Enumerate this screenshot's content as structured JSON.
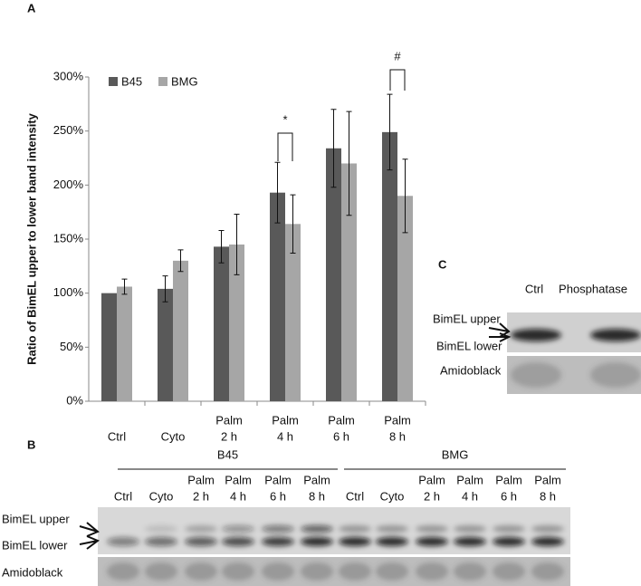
{
  "chart_data": {
    "type": "bar",
    "panel_label": "A",
    "ylabel": "Ratio of BimEL upper to lower band intensity",
    "categories": [
      [
        "Ctrl"
      ],
      [
        "Cyto"
      ],
      [
        "Palm",
        "2 h"
      ],
      [
        "Palm",
        "4 h"
      ],
      [
        "Palm",
        "6 h"
      ],
      [
        "Palm",
        "8 h"
      ]
    ],
    "series": [
      {
        "name": "B45",
        "color": "#595959",
        "values": [
          100,
          104,
          143,
          193,
          234,
          249
        ],
        "errors": [
          0,
          12,
          15,
          28,
          36,
          35
        ]
      },
      {
        "name": "BMG",
        "color": "#a6a6a6",
        "values": [
          106,
          130,
          145,
          164,
          220,
          190
        ],
        "errors": [
          7,
          10,
          28,
          27,
          48,
          34
        ]
      }
    ],
    "ylim": [
      0,
      300
    ],
    "yticks": [
      {
        "value": 0,
        "label": "0%"
      },
      {
        "value": 50,
        "label": "50%"
      },
      {
        "value": 100,
        "label": "100%"
      },
      {
        "value": 150,
        "label": "150%"
      },
      {
        "value": 200,
        "label": "200%"
      },
      {
        "value": 250,
        "label": "250%"
      },
      {
        "value": 300,
        "label": "300%"
      }
    ],
    "annotations": [
      "*",
      "#"
    ],
    "legend": "top-left"
  },
  "panel_b": {
    "label": "B",
    "groups": [
      {
        "name": "B45",
        "lanes": [
          [
            "Ctrl"
          ],
          [
            "Cyto"
          ],
          [
            "Palm",
            "2 h"
          ],
          [
            "Palm",
            "4 h"
          ],
          [
            "Palm",
            "6 h"
          ],
          [
            "Palm",
            "8 h"
          ]
        ]
      },
      {
        "name": "BMG",
        "lanes": [
          [
            "Ctrl"
          ],
          [
            "Cyto"
          ],
          [
            "Palm",
            "2 h"
          ],
          [
            "Palm",
            "4 h"
          ],
          [
            "Palm",
            "6 h"
          ],
          [
            "Palm",
            "8 h"
          ]
        ]
      }
    ],
    "rows": [
      "BimEL upper",
      "BimEL lower",
      "Amidoblack"
    ]
  },
  "panel_c": {
    "label": "C",
    "lanes": [
      "Ctrl",
      "Phosphatase"
    ],
    "rows": [
      "BimEL upper",
      "BimEL lower",
      "Amidoblack"
    ]
  }
}
